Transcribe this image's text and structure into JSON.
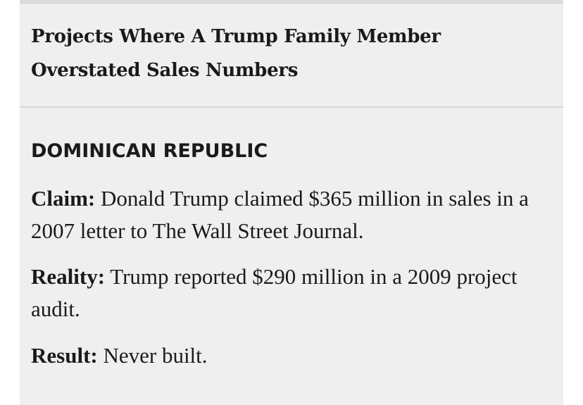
{
  "section": {
    "title": "Projects Where A Trump Family Member Overstated Sales Numbers"
  },
  "project": {
    "region": "DOMINICAN REPUBLIC",
    "claim": {
      "label": "Claim:",
      "text": "Donald Trump claimed $365 million in sales in a 2007 letter to The Wall Street Journal."
    },
    "reality": {
      "label": "Reality:",
      "text": "Trump reported $290 million in a 2009 project audit."
    },
    "result": {
      "label": "Result:",
      "text": "Never built."
    }
  }
}
